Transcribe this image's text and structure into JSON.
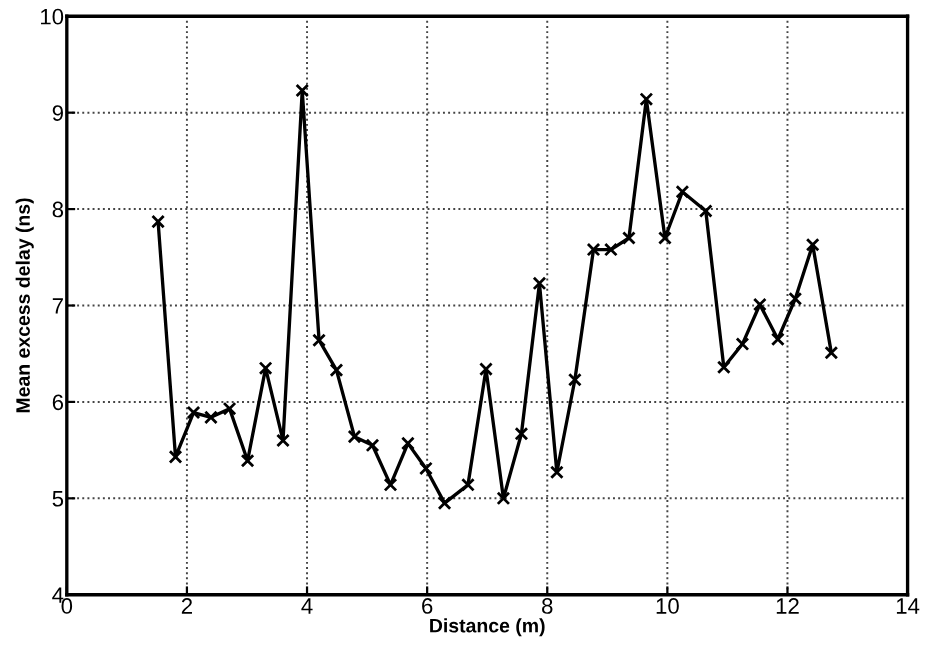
{
  "chart_data": {
    "type": "line",
    "xlabel": "Distance (m)",
    "ylabel": "Mean excess delay (ns)",
    "x": [
      1.52,
      1.81,
      2.11,
      2.4,
      2.71,
      3.01,
      3.31,
      3.6,
      3.92,
      4.2,
      4.49,
      4.79,
      5.09,
      5.39,
      5.68,
      5.98,
      6.29,
      6.68,
      6.98,
      7.27,
      7.57,
      7.87,
      8.16,
      8.46,
      8.77,
      9.06,
      9.36,
      9.65,
      9.96,
      10.25,
      10.64,
      10.94,
      11.25,
      11.54,
      11.84,
      12.13,
      12.42,
      12.73
    ],
    "series": [
      {
        "color": "#000000",
        "values": [
          7.87,
          5.43,
          5.89,
          5.84,
          5.93,
          5.39,
          6.35,
          5.6,
          9.23,
          6.64,
          6.33,
          5.64,
          5.55,
          5.14,
          5.57,
          5.31,
          4.95,
          5.14,
          6.34,
          5.0,
          5.67,
          7.23,
          5.27,
          6.23,
          7.58,
          7.58,
          7.7,
          9.14,
          7.7,
          8.18,
          7.98,
          6.36,
          6.6,
          7.01,
          6.65,
          7.07,
          7.63,
          6.51
        ]
      }
    ],
    "xlim": [
      0,
      14
    ],
    "ylim": [
      4,
      10
    ],
    "xticks": [
      0,
      2,
      4,
      6,
      8,
      10,
      12,
      14
    ],
    "yticks": [
      4,
      5,
      6,
      7,
      8,
      9,
      10
    ],
    "grid": true,
    "marker": "cross",
    "line_style": "solid",
    "legend": false
  }
}
